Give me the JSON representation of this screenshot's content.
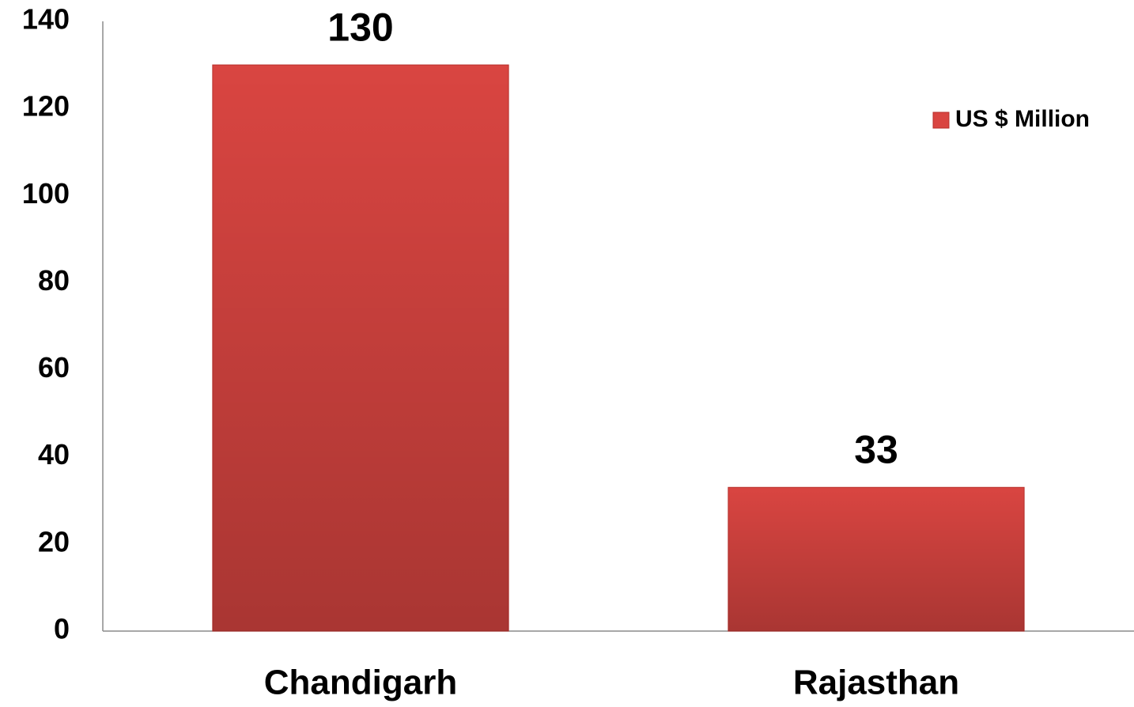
{
  "chart_data": {
    "type": "bar",
    "categories": [
      "Chandigarh",
      "Rajasthan"
    ],
    "series": [
      {
        "name": "US $ Million",
        "color": "#d94541",
        "values": [
          130,
          33
        ]
      }
    ],
    "ylim": [
      0,
      140
    ],
    "yticks": [
      0,
      20,
      40,
      60,
      80,
      100,
      120,
      140
    ],
    "grid": false,
    "legend": "right"
  }
}
